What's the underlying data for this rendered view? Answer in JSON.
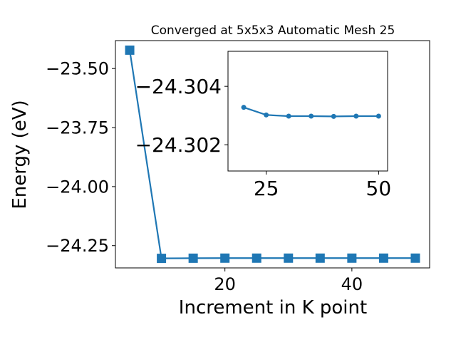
{
  "chart_data": [
    {
      "type": "line",
      "title": "Converged at 5x5x3 Automatic Mesh 25",
      "xlabel": "Increment in K point",
      "ylabel": "Energy (eV)",
      "x": [
        5,
        10,
        15,
        20,
        25,
        30,
        35,
        40,
        45,
        50
      ],
      "series": [
        {
          "values": [
            -23.422,
            -24.304,
            -24.3033,
            -24.303,
            -24.303,
            -24.303,
            -24.303,
            -24.303,
            -24.303,
            -24.303
          ]
        }
      ],
      "xlim": [
        2.75,
        52.25
      ],
      "ylim": [
        -24.3444,
        -23.3816
      ],
      "xticks": [
        20,
        40
      ],
      "xtick_labels": [
        "20",
        "40"
      ],
      "yticks": [
        -23.5,
        -23.75,
        -24.0,
        -24.25
      ],
      "ytick_labels": [
        "−23.50",
        "−23.75",
        "−24.00",
        "−24.25"
      ],
      "marker": "square",
      "color": "#1f77b4",
      "grid": false
    },
    {
      "type": "line",
      "panel": "inset",
      "x": [
        20,
        25,
        30,
        35,
        40,
        45,
        50
      ],
      "series": [
        {
          "values": [
            -24.30328,
            -24.30302,
            -24.30298,
            -24.30298,
            -24.30297,
            -24.30298,
            -24.30298
          ]
        }
      ],
      "xlim": [
        16.5,
        52.0
      ],
      "ylim": [
        -24.3011,
        -24.3052
      ],
      "xticks": [
        25,
        50
      ],
      "xtick_labels": [
        "25",
        "50"
      ],
      "yticks": [
        -24.304,
        -24.302
      ],
      "ytick_labels": [
        "−24.304",
        "−24.302"
      ],
      "marker": "circle",
      "color": "#1f77b4",
      "grid": false
    }
  ]
}
